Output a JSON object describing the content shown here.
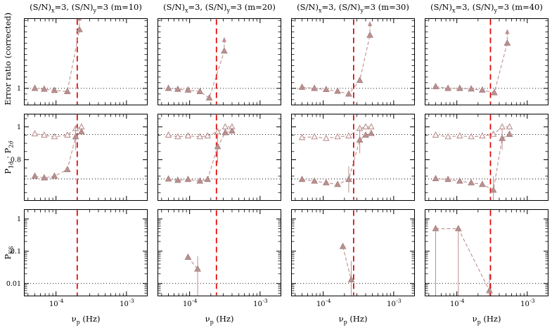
{
  "colors": {
    "marker": "#bc8f8f",
    "marker_edge": "#a27f7f",
    "open_fill": "#ffffff",
    "red_line": "#e00000",
    "axis": "#000000",
    "dotted": "#000000"
  },
  "chart_data": {
    "type": "line",
    "x": {
      "scale": "log",
      "lim": [
        3.5e-05,
        0.002
      ],
      "major": [
        0.0001,
        0.001
      ],
      "major_labels": [
        "-4",
        "-3"
      ]
    },
    "xlabel": [
      [
        "ν",
        0
      ],
      [
        "p",
        1
      ],
      [
        " (Hz)",
        0
      ]
    ],
    "columns": [
      {
        "title": [
          [
            "(S/N)",
            0
          ],
          [
            "x",
            1
          ],
          [
            "=3, (S/N)",
            0
          ],
          [
            "y",
            1
          ],
          [
            "=3 (m=10)",
            0
          ]
        ]
      },
      {
        "title": [
          [
            "(S/N)",
            0
          ],
          [
            "x",
            1
          ],
          [
            "=3, (S/N)",
            0
          ],
          [
            "y",
            1
          ],
          [
            "=3 (m=20)",
            0
          ]
        ]
      },
      {
        "title": [
          [
            "(S/N)",
            0
          ],
          [
            "x",
            1
          ],
          [
            "=3, (S/N)",
            0
          ],
          [
            "y",
            1
          ],
          [
            "=3 (m=30)",
            0
          ]
        ]
      },
      {
        "title": [
          [
            "(S/N)",
            0
          ],
          [
            "x",
            1
          ],
          [
            "=3, (S/N)",
            0
          ],
          [
            "y",
            1
          ],
          [
            "=3 (m=40)",
            0
          ]
        ]
      }
    ],
    "rows": [
      {
        "ylabel": [
          [
            "Error ratio (corrected)",
            0
          ]
        ],
        "scale": "linear",
        "lim": [
          0.85,
          1.62
        ],
        "major": [
          [
            1,
            "1"
          ]
        ],
        "minor": [
          0.9,
          0.95,
          1.05,
          1.1,
          1.15,
          1.2,
          1.25,
          1.3,
          1.35,
          1.4,
          1.45,
          1.5,
          1.55,
          1.6
        ],
        "dotted": [
          1.0
        ]
      },
      {
        "ylabel": [
          [
            "P",
            0
          ],
          [
            "1σ̂",
            1
          ],
          [
            " · ",
            0
          ],
          [
            "P",
            0
          ],
          [
            "2σ̂",
            1
          ]
        ],
        "scale": "linear",
        "lim": [
          0.55,
          1.08
        ],
        "major": [
          [
            0.8,
            "0.8"
          ],
          [
            1,
            "1"
          ]
        ],
        "minor": [
          0.6,
          0.65,
          0.7,
          0.75,
          0.85,
          0.9,
          0.95,
          1.05
        ],
        "dotted": [
          0.954,
          0.683
        ]
      },
      {
        "ylabel": [
          [
            "P",
            0
          ],
          [
            "KS",
            1
          ]
        ],
        "scale": "log",
        "lim": [
          0.004,
          2
        ],
        "major": [
          [
            0.01,
            "0.01"
          ],
          [
            0.1,
            "0.1"
          ],
          [
            1,
            "1"
          ]
        ],
        "minor": "auto",
        "dotted": [
          0.01
        ]
      }
    ],
    "panels": [
      {
        "r": 0,
        "c": 0,
        "vline": 0.0002,
        "series": [
          {
            "m": "filled",
            "pts": [
              {
                "x": 5e-05,
                "y": 1.0
              },
              {
                "x": 6.8e-05,
                "y": 0.993
              },
              {
                "x": 9.5e-05,
                "y": 0.982
              },
              {
                "x": 0.000145,
                "y": 0.972
              },
              {
                "x": 0.000215,
                "y": 1.52,
                "a": 1
              }
            ]
          }
        ]
      },
      {
        "r": 0,
        "c": 1,
        "vline": 0.00024,
        "series": [
          {
            "m": "filled",
            "pts": [
              {
                "x": 5e-05,
                "y": 1.0
              },
              {
                "x": 6.8e-05,
                "y": 0.992
              },
              {
                "x": 9.5e-05,
                "y": 0.985
              },
              {
                "x": 0.00014,
                "y": 0.972
              },
              {
                "x": 0.00019,
                "y": 0.915
              },
              {
                "x": 0.00031,
                "y": 1.33,
                "a": 1
              }
            ]
          }
        ]
      },
      {
        "r": 0,
        "c": 2,
        "vline": 0.00027,
        "series": [
          {
            "m": "filled",
            "pts": [
              {
                "x": 5e-05,
                "y": 1.01
              },
              {
                "x": 7.5e-05,
                "y": 1.0
              },
              {
                "x": 0.00011,
                "y": 0.99
              },
              {
                "x": 0.00016,
                "y": 0.975
              },
              {
                "x": 0.00023,
                "y": 0.95
              },
              {
                "x": 0.00033,
                "y": 1.07
              },
              {
                "x": 0.00046,
                "y": 1.47,
                "a": 1
              }
            ]
          }
        ]
      },
      {
        "r": 0,
        "c": 3,
        "vline": 0.0003,
        "series": [
          {
            "m": "filled",
            "pts": [
              {
                "x": 5e-05,
                "y": 1.015
              },
              {
                "x": 7.5e-05,
                "y": 1.0
              },
              {
                "x": 0.00011,
                "y": 1.0
              },
              {
                "x": 0.00016,
                "y": 0.995
              },
              {
                "x": 0.00023,
                "y": 0.985
              },
              {
                "x": 0.00034,
                "y": 0.962
              },
              {
                "x": 0.00052,
                "y": 1.4,
                "a": 1
              }
            ]
          }
        ]
      },
      {
        "r": 1,
        "c": 0,
        "vline": 0.0002,
        "series": [
          {
            "m": "open",
            "pts": [
              {
                "x": 5e-05,
                "y": 0.958
              },
              {
                "x": 6.8e-05,
                "y": 0.95
              },
              {
                "x": 9.5e-05,
                "y": 0.94
              },
              {
                "x": 0.000145,
                "y": 0.95
              },
              {
                "x": 0.00019,
                "y": 0.99
              },
              {
                "x": 0.00023,
                "y": 1.0
              }
            ]
          },
          {
            "m": "filled",
            "pts": [
              {
                "x": 5e-05,
                "y": 0.7
              },
              {
                "x": 6.8e-05,
                "y": 0.69
              },
              {
                "x": 9.5e-05,
                "y": 0.7
              },
              {
                "x": 0.000145,
                "y": 0.74
              },
              {
                "x": 0.00019,
                "y": 0.94,
                "lo": 0.86,
                "hi": 1.0
              },
              {
                "x": 0.00023,
                "y": 0.97
              }
            ]
          }
        ]
      },
      {
        "r": 1,
        "c": 1,
        "vline": 0.00024,
        "series": [
          {
            "m": "open",
            "pts": [
              {
                "x": 5e-05,
                "y": 0.95
              },
              {
                "x": 6.8e-05,
                "y": 0.94
              },
              {
                "x": 9.5e-05,
                "y": 0.945
              },
              {
                "x": 0.00014,
                "y": 0.94
              },
              {
                "x": 0.00018,
                "y": 0.945
              },
              {
                "x": 0.00025,
                "y": 0.97
              },
              {
                "x": 0.00032,
                "y": 1.0
              },
              {
                "x": 0.0004,
                "y": 1.0
              }
            ]
          },
          {
            "m": "filled",
            "pts": [
              {
                "x": 5e-05,
                "y": 0.683
              },
              {
                "x": 6.8e-05,
                "y": 0.675
              },
              {
                "x": 9.5e-05,
                "y": 0.68
              },
              {
                "x": 0.00014,
                "y": 0.67
              },
              {
                "x": 0.00018,
                "y": 0.68
              },
              {
                "x": 0.00025,
                "y": 0.88,
                "lo": 0.78,
                "hi": 0.96
              },
              {
                "x": 0.00032,
                "y": 0.965
              },
              {
                "x": 0.0004,
                "y": 0.975
              }
            ]
          }
        ]
      },
      {
        "r": 1,
        "c": 2,
        "vline": 0.00027,
        "series": [
          {
            "m": "open",
            "pts": [
              {
                "x": 5e-05,
                "y": 0.935
              },
              {
                "x": 7.5e-05,
                "y": 0.94
              },
              {
                "x": 0.00011,
                "y": 0.93
              },
              {
                "x": 0.00016,
                "y": 0.94
              },
              {
                "x": 0.00023,
                "y": 0.945
              },
              {
                "x": 0.00033,
                "y": 0.99
              },
              {
                "x": 0.0004,
                "y": 1.0
              },
              {
                "x": 0.00048,
                "y": 1.0
              }
            ]
          },
          {
            "m": "filled",
            "pts": [
              {
                "x": 5e-05,
                "y": 0.68
              },
              {
                "x": 7.5e-05,
                "y": 0.67
              },
              {
                "x": 0.00011,
                "y": 0.66
              },
              {
                "x": 0.00016,
                "y": 0.65
              },
              {
                "x": 0.00023,
                "y": 0.68,
                "lo": 0.6,
                "hi": 0.76
              },
              {
                "x": 0.00033,
                "y": 0.92,
                "lo": 0.84,
                "hi": 0.99
              },
              {
                "x": 0.0004,
                "y": 0.95
              },
              {
                "x": 0.00048,
                "y": 0.96
              }
            ]
          }
        ]
      },
      {
        "r": 1,
        "c": 3,
        "vline": 0.0003,
        "series": [
          {
            "m": "open",
            "pts": [
              {
                "x": 5e-05,
                "y": 0.95
              },
              {
                "x": 7.5e-05,
                "y": 0.94
              },
              {
                "x": 0.00011,
                "y": 0.945
              },
              {
                "x": 0.00016,
                "y": 0.94
              },
              {
                "x": 0.00023,
                "y": 0.945
              },
              {
                "x": 0.00033,
                "y": 0.955
              },
              {
                "x": 0.00044,
                "y": 1.0
              },
              {
                "x": 0.00056,
                "y": 1.0
              }
            ]
          },
          {
            "m": "filled",
            "pts": [
              {
                "x": 5e-05,
                "y": 0.685
              },
              {
                "x": 7.5e-05,
                "y": 0.68
              },
              {
                "x": 0.00011,
                "y": 0.67
              },
              {
                "x": 0.00016,
                "y": 0.66
              },
              {
                "x": 0.00023,
                "y": 0.65
              },
              {
                "x": 0.00033,
                "y": 0.615,
                "lo": 0.55,
                "hi": 0.7
              },
              {
                "x": 0.00044,
                "y": 0.93,
                "lo": 0.86,
                "hi": 0.99
              },
              {
                "x": 0.00056,
                "y": 0.955
              }
            ]
          }
        ]
      },
      {
        "r": 2,
        "c": 0,
        "vline": 0.0002,
        "series": []
      },
      {
        "r": 2,
        "c": 1,
        "vline": 0.00024,
        "series": [
          {
            "m": "filled",
            "pts": [
              {
                "x": 9.5e-05,
                "y": 0.065
              },
              {
                "x": 0.00013,
                "y": 0.028,
                "lo": 0.004,
                "hi": 0.07
              }
            ]
          }
        ]
      },
      {
        "r": 2,
        "c": 2,
        "vline": 0.00027,
        "series": [
          {
            "m": "filled",
            "pts": [
              {
                "x": 0.00019,
                "y": 0.14
              },
              {
                "x": 0.00025,
                "y": 0.013,
                "lo": 0.004,
                "hi": 0.05
              }
            ]
          }
        ]
      },
      {
        "r": 2,
        "c": 3,
        "vline": 0.0003,
        "series": [
          {
            "m": "filled",
            "pts": [
              {
                "x": 5e-05,
                "y": 0.5,
                "lo": 0.004,
                "hi": 0.55
              },
              {
                "x": 0.000105,
                "y": 0.5,
                "lo": 0.004,
                "hi": 0.55
              },
              {
                "x": 0.00029,
                "y": 0.006,
                "lo": 0.004,
                "hi": 0.02
              }
            ]
          }
        ]
      }
    ]
  }
}
